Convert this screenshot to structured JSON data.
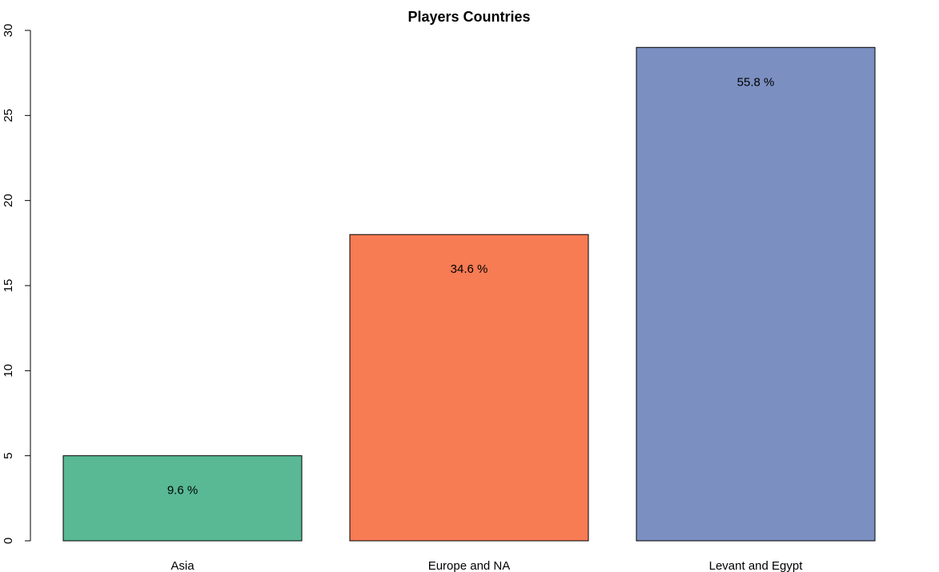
{
  "chart_data": {
    "type": "bar",
    "title": "Players Countries",
    "xlabel": "",
    "ylabel": "",
    "categories": [
      "Asia",
      "Europe and NA",
      "Levant and Egypt"
    ],
    "values": [
      5,
      18,
      29
    ],
    "data_labels": [
      "9.6 %",
      "34.6 %",
      "55.8 %"
    ],
    "colors": [
      "#58b994",
      "#f77b53",
      "#7b8fc1"
    ],
    "ylim": [
      0,
      30
    ],
    "yticks": [
      0,
      5,
      10,
      15,
      20,
      25,
      30
    ],
    "grid": false,
    "legend": "none"
  }
}
